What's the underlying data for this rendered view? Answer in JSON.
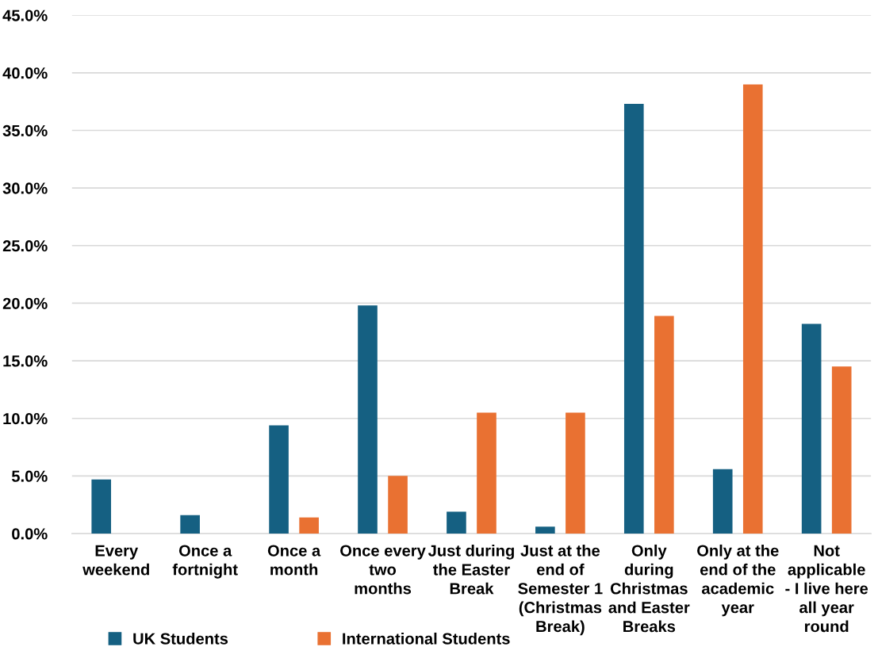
{
  "chart_data": {
    "type": "bar",
    "categories": [
      "Every\nweekend",
      "Once a\nfortnight",
      "Once a\nmonth",
      "Once every\ntwo\nmonths",
      "Just during\nthe Easter\nBreak",
      "Just at the\nend of\nSemester 1\n(Christmas\nBreak)",
      "Only\nduring\nChristmas\nand Easter\nBreaks",
      "Only at the\nend of the\nacademic\nyear",
      "Not\napplicable\n- I live here\nall year\nround"
    ],
    "series": [
      {
        "name": "UK Students",
        "color": "#156082",
        "values": [
          4.7,
          1.6,
          9.4,
          19.8,
          1.9,
          0.6,
          37.3,
          5.6,
          18.2
        ]
      },
      {
        "name": "International Students",
        "color": "#e97132",
        "values": [
          0,
          0,
          1.4,
          5.0,
          10.5,
          10.5,
          18.9,
          39.0,
          14.5
        ]
      }
    ],
    "ylim": [
      0,
      45
    ],
    "yticks": [
      {
        "value": 0,
        "label": "0.0%"
      },
      {
        "value": 5,
        "label": "5.0%"
      },
      {
        "value": 10,
        "label": "10.0%"
      },
      {
        "value": 15,
        "label": "15.0%"
      },
      {
        "value": 20,
        "label": "20.0%"
      },
      {
        "value": 25,
        "label": "25.0%"
      },
      {
        "value": 30,
        "label": "30.0%"
      },
      {
        "value": 35,
        "label": "35.0%"
      },
      {
        "value": 40,
        "label": "40.0%"
      },
      {
        "value": 45,
        "label": "45.0%"
      }
    ],
    "grid": "y",
    "legend": "bottom left"
  }
}
